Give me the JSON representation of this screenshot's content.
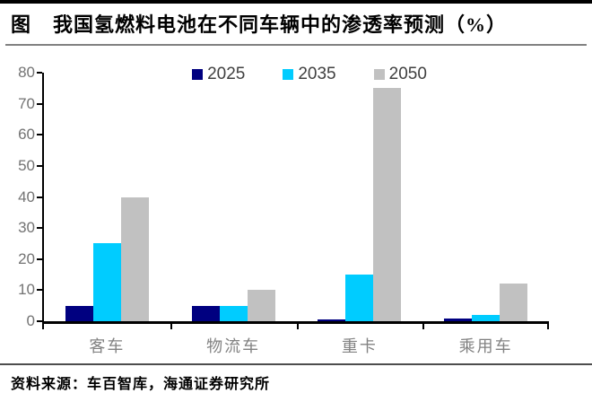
{
  "header": {
    "tag": "图",
    "title": "我国氢燃料电池在不同车辆中的渗透率预测（%）"
  },
  "chart_data": {
    "type": "bar",
    "title": "我国氢燃料电池在不同车辆中的渗透率预测（%）",
    "categories": [
      "客车",
      "物流车",
      "重卡",
      "乘用车"
    ],
    "series": [
      {
        "name": "2025",
        "color": "#000080",
        "values": [
          5,
          5,
          0.5,
          1
        ]
      },
      {
        "name": "2035",
        "color": "#00CCFF",
        "values": [
          25,
          5,
          15,
          2
        ]
      },
      {
        "name": "2050",
        "color": "#C1C1C1",
        "values": [
          40,
          10,
          75,
          12
        ]
      }
    ],
    "xlabel": "",
    "ylabel": "",
    "ylim": [
      0,
      80
    ],
    "yticks": [
      0,
      10,
      20,
      30,
      40,
      50,
      60,
      70,
      80
    ],
    "legend_position": "top-center",
    "grid": false
  },
  "footer": {
    "source": "资料来源：车百智库，海通证券研究所"
  }
}
